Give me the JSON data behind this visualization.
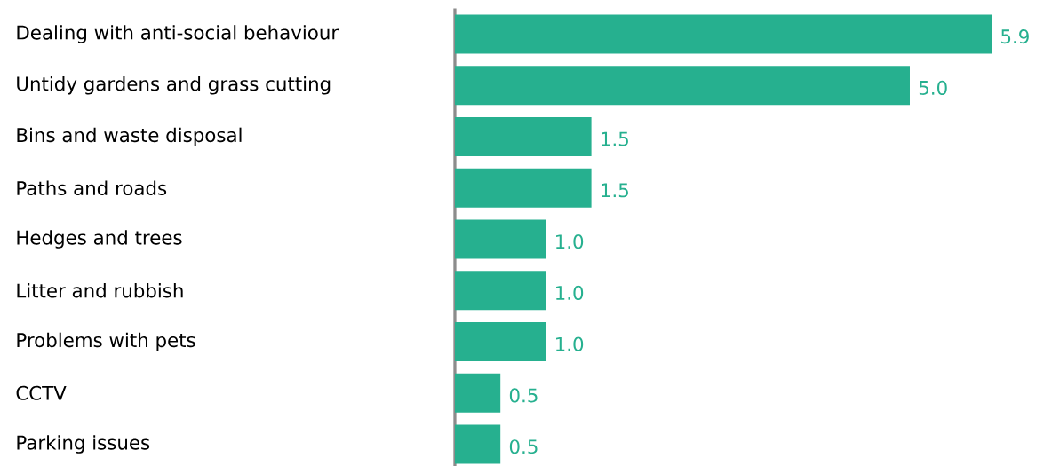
{
  "chart_data": {
    "type": "bar",
    "orientation": "horizontal",
    "categories": [
      "Dealing with anti-social behaviour",
      "Untidy gardens and grass cutting",
      "Bins and waste disposal",
      "Paths and roads",
      "Hedges and trees",
      "Litter and rubbish",
      "Problems with pets",
      "CCTV",
      "Parking issues"
    ],
    "values": [
      5.9,
      5.0,
      1.5,
      1.5,
      1.0,
      1.0,
      1.0,
      0.5,
      0.5
    ],
    "value_labels": [
      "5.9",
      "5.0",
      "1.5",
      "1.5",
      "1.0",
      "1.0",
      "1.0",
      "0.5",
      "0.5"
    ],
    "color": "#26b08f"
  }
}
